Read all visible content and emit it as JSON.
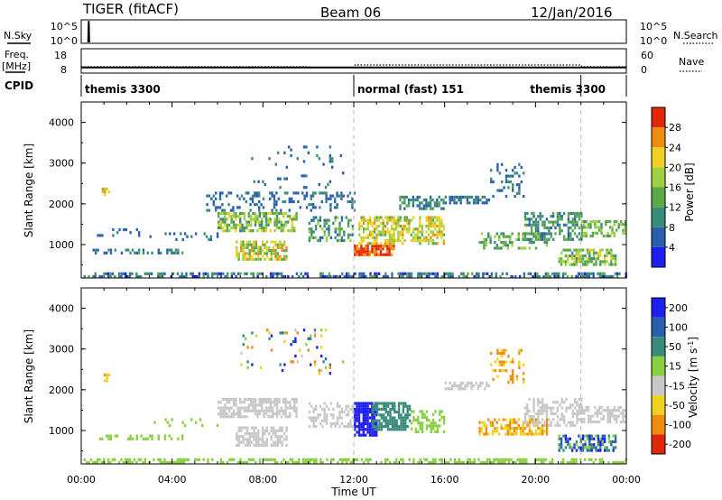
{
  "header": {
    "radar": "TIGER (fitACF)",
    "beam": "Beam 06",
    "date": "12/Jan/2016"
  },
  "colors": {
    "power_scale": [
      "#1e1ef0",
      "#2a5fb0",
      "#3a8c7a",
      "#5aaa4a",
      "#9fd040",
      "#f0d020",
      "#f08c10",
      "#e02808"
    ],
    "velocity_scale": [
      "#1e1ef0",
      "#2a5fb0",
      "#3a8c7a",
      "#88d040",
      "#c8c8c8",
      "#f0d020",
      "#f08c10",
      "#e02808"
    ],
    "frame": "#000000",
    "divider": "#bbbbbb"
  },
  "chart_data": [
    {
      "type": "line",
      "panel": "N.Sky / N.Search",
      "left_label": "N.Sky",
      "right_label": "N.Search",
      "left_ticks": [
        "10^5",
        "10^0"
      ],
      "right_ticks": [
        "10^5",
        "10^0"
      ],
      "left_ylim": [
        0,
        5
      ],
      "x_hours": [
        0.3,
        0.32,
        0.34,
        0.36
      ],
      "series": [
        {
          "values": [
            0,
            5,
            5,
            0
          ]
        }
      ]
    },
    {
      "type": "line",
      "panel": "Freq / Nave",
      "left_label": "Freq.",
      "left_unit": "[MHz]",
      "right_label": "Nave",
      "left_ticks": [
        18,
        8
      ],
      "left_ylim": [
        8,
        18
      ],
      "right_ticks": [
        60,
        0
      ],
      "right_ylim": [
        0,
        60
      ],
      "freq_x_hours": [
        0,
        24
      ],
      "freq_values": [
        10.2,
        10.2
      ],
      "nave_x_hours": [
        0,
        10,
        10.1,
        12,
        12.05,
        22,
        22.05,
        24
      ],
      "nave_values": [
        15,
        15,
        13,
        13,
        20,
        20,
        15,
        15
      ]
    },
    {
      "type": "table",
      "panel": "CPID",
      "label": "CPID",
      "segments": [
        {
          "start_hour": 0,
          "end_hour": 12,
          "text": "themis 3300"
        },
        {
          "start_hour": 12,
          "end_hour": 22,
          "text": "normal (fast) 151"
        },
        {
          "start_hour": 22,
          "end_hour": 24,
          "text": "themis 3300",
          "label_at_hour": 19.6
        }
      ]
    },
    {
      "type": "heatmap",
      "panel": "power",
      "ylabel": "Slant Range [km]",
      "ylim": [
        180,
        4500
      ],
      "yticks": [
        1000,
        2000,
        3000,
        4000
      ],
      "xlim": [
        0,
        24
      ],
      "colorbar_label": "Power [dB]",
      "colorbar_range": [
        0,
        32
      ],
      "colorbar_ticks": [
        4,
        8,
        12,
        16,
        20,
        24,
        28
      ],
      "regions": [
        {
          "t": [
            0.1,
            24
          ],
          "r": [
            200,
            320
          ],
          "density": 0.55,
          "v": [
            2,
            14
          ]
        },
        {
          "t": [
            0.5,
            4.5
          ],
          "r": [
            780,
            900
          ],
          "density": 0.35,
          "v": [
            4,
            14
          ]
        },
        {
          "t": [
            0.5,
            3.0
          ],
          "r": [
            1250,
            1400
          ],
          "density": 0.2,
          "v": [
            4,
            10
          ]
        },
        {
          "t": [
            0.9,
            1.2
          ],
          "r": [
            2200,
            2400
          ],
          "density": 0.6,
          "v": [
            14,
            28
          ]
        },
        {
          "t": [
            6.0,
            9.5
          ],
          "r": [
            1350,
            1800
          ],
          "density": 0.65,
          "v": [
            10,
            22
          ]
        },
        {
          "t": [
            6.8,
            9.0
          ],
          "r": [
            650,
            1100
          ],
          "density": 0.7,
          "v": [
            12,
            26
          ]
        },
        {
          "t": [
            5.5,
            12.0
          ],
          "r": [
            1850,
            2300
          ],
          "density": 0.3,
          "v": [
            4,
            10
          ]
        },
        {
          "t": [
            7.0,
            11.5
          ],
          "r": [
            2400,
            3500
          ],
          "density": 0.07,
          "v": [
            4,
            10
          ]
        },
        {
          "t": [
            10.0,
            12.0
          ],
          "r": [
            1100,
            1700
          ],
          "density": 0.45,
          "v": [
            6,
            18
          ]
        },
        {
          "t": [
            12.0,
            13.8
          ],
          "r": [
            720,
            1000
          ],
          "density": 0.85,
          "v": [
            24,
            32
          ]
        },
        {
          "t": [
            12.2,
            16.0
          ],
          "r": [
            1050,
            1700
          ],
          "density": 0.6,
          "v": [
            14,
            26
          ]
        },
        {
          "t": [
            14.0,
            16.0
          ],
          "r": [
            1900,
            2200
          ],
          "density": 0.5,
          "v": [
            6,
            14
          ]
        },
        {
          "t": [
            16.0,
            18.0
          ],
          "r": [
            2000,
            2200
          ],
          "density": 0.6,
          "v": [
            4,
            12
          ]
        },
        {
          "t": [
            18.0,
            19.5
          ],
          "r": [
            2200,
            3000
          ],
          "density": 0.25,
          "v": [
            4,
            10
          ]
        },
        {
          "t": [
            17.5,
            20.5
          ],
          "r": [
            900,
            1300
          ],
          "density": 0.45,
          "v": [
            8,
            20
          ]
        },
        {
          "t": [
            19.5,
            22.0
          ],
          "r": [
            1100,
            1800
          ],
          "density": 0.5,
          "v": [
            6,
            16
          ]
        },
        {
          "t": [
            21.0,
            23.5
          ],
          "r": [
            500,
            900
          ],
          "density": 0.6,
          "v": [
            10,
            22
          ]
        },
        {
          "t": [
            22.0,
            24.0
          ],
          "r": [
            1200,
            1600
          ],
          "density": 0.55,
          "v": [
            10,
            20
          ]
        },
        {
          "t": [
            3.0,
            6.0
          ],
          "r": [
            1100,
            1300
          ],
          "density": 0.12,
          "v": [
            4,
            10
          ]
        }
      ]
    },
    {
      "type": "heatmap",
      "panel": "velocity",
      "ylabel": "Slant Range [km]",
      "ylim": [
        180,
        4500
      ],
      "yticks": [
        1000,
        2000,
        3000,
        4000
      ],
      "xlim": [
        0,
        24
      ],
      "xticks": [
        "00:00",
        "04:00",
        "08:00",
        "12:00",
        "16:00",
        "20:00",
        "00:00"
      ],
      "xlabel": "Time UT",
      "colorbar_label": "Velocity [m s",
      "colorbar_label_sup": "-1",
      "colorbar_label_end": "]",
      "colorbar_ticks": [
        "200",
        "100",
        "50",
        "15",
        "-15",
        "-50",
        "-100",
        "-200"
      ],
      "regions": [
        {
          "t": [
            0.1,
            24
          ],
          "r": [
            200,
            320
          ],
          "density": 0.5,
          "v": [
            3,
            4
          ]
        },
        {
          "t": [
            0.5,
            4.5
          ],
          "r": [
            780,
            900
          ],
          "density": 0.3,
          "v": [
            3,
            4
          ]
        },
        {
          "t": [
            0.9,
            1.2
          ],
          "r": [
            2200,
            2400
          ],
          "density": 0.6,
          "v": [
            5,
            7
          ]
        },
        {
          "t": [
            6.0,
            9.5
          ],
          "r": [
            1350,
            1800
          ],
          "density": 0.65,
          "v": [
            4,
            4
          ]
        },
        {
          "t": [
            6.8,
            9.0
          ],
          "r": [
            650,
            1100
          ],
          "density": 0.7,
          "v": [
            4,
            4
          ]
        },
        {
          "t": [
            10.0,
            12.0
          ],
          "r": [
            1100,
            1700
          ],
          "density": 0.45,
          "v": [
            4,
            5
          ]
        },
        {
          "t": [
            7.0,
            11.5
          ],
          "r": [
            2400,
            3500
          ],
          "density": 0.07,
          "v": [
            0,
            7
          ]
        },
        {
          "t": [
            12.0,
            13.0
          ],
          "r": [
            900,
            1700
          ],
          "density": 0.85,
          "v": [
            0,
            1
          ]
        },
        {
          "t": [
            12.8,
            14.5
          ],
          "r": [
            1050,
            1700
          ],
          "density": 0.7,
          "v": [
            2,
            3
          ]
        },
        {
          "t": [
            14.5,
            16.0
          ],
          "r": [
            1000,
            1500
          ],
          "density": 0.5,
          "v": [
            3,
            4
          ]
        },
        {
          "t": [
            16.0,
            18.0
          ],
          "r": [
            2000,
            2200
          ],
          "density": 0.6,
          "v": [
            4,
            5
          ]
        },
        {
          "t": [
            18.0,
            19.5
          ],
          "r": [
            2200,
            3000
          ],
          "density": 0.25,
          "v": [
            5,
            7
          ]
        },
        {
          "t": [
            17.5,
            20.5
          ],
          "r": [
            900,
            1300
          ],
          "density": 0.5,
          "v": [
            5,
            7
          ]
        },
        {
          "t": [
            19.5,
            22.0
          ],
          "r": [
            1100,
            1800
          ],
          "density": 0.5,
          "v": [
            4,
            5
          ]
        },
        {
          "t": [
            21.0,
            23.5
          ],
          "r": [
            500,
            900
          ],
          "density": 0.6,
          "v": [
            0,
            4
          ]
        },
        {
          "t": [
            22.0,
            24.0
          ],
          "r": [
            1200,
            1600
          ],
          "density": 0.55,
          "v": [
            4,
            5
          ]
        },
        {
          "t": [
            3.0,
            6.0
          ],
          "r": [
            1100,
            1300
          ],
          "density": 0.12,
          "v": [
            3,
            4
          ]
        }
      ]
    }
  ]
}
